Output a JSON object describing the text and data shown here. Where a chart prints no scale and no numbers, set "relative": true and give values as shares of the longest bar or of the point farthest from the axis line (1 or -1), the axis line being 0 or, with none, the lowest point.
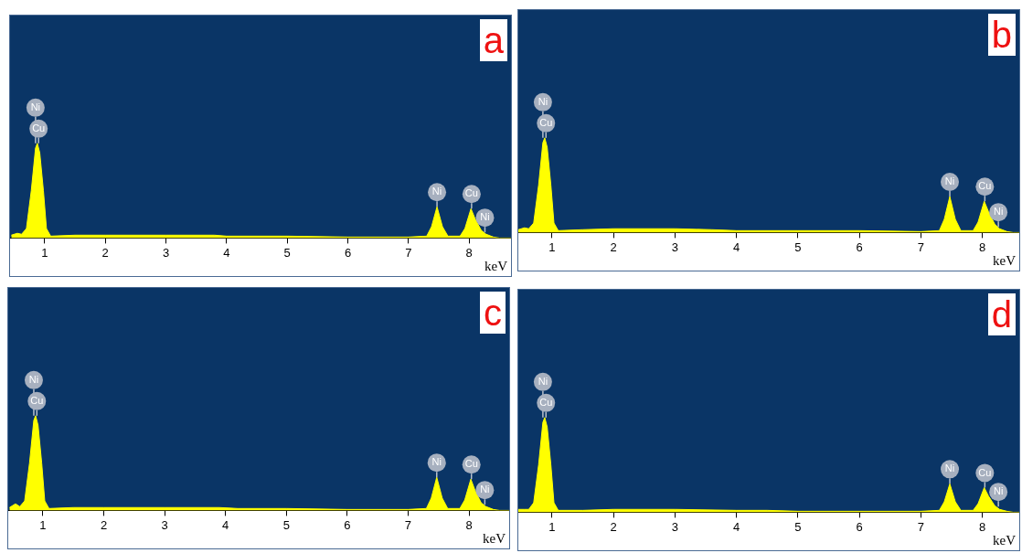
{
  "chart_data": [
    {
      "type": "area",
      "relative": true,
      "xlabel": "keV",
      "xlim": [
        0.43,
        8.69
      ],
      "xticks": [
        1,
        2,
        3,
        4,
        5,
        6,
        7,
        8
      ],
      "tick_labels": "x",
      "series": [
        {
          "color": "#ffff00",
          "x": [
            0.45,
            0.55,
            0.62,
            0.7,
            0.78,
            0.85,
            0.88,
            0.92,
            0.98,
            1.03,
            1.1,
            1.5,
            2,
            3,
            3.8,
            4,
            5,
            6,
            7,
            7.3,
            7.38,
            7.47,
            7.56,
            7.65,
            7.85,
            7.93,
            8.03,
            8.1,
            8.2,
            8.28,
            8.4,
            8.5,
            8.69
          ],
          "values": [
            0.03,
            0.05,
            0.04,
            0.1,
            0.5,
            0.95,
            1,
            0.9,
            0.5,
            0.1,
            0.02,
            0.03,
            0.03,
            0.03,
            0.03,
            0.02,
            0.02,
            0.01,
            0.01,
            0.02,
            0.12,
            0.33,
            0.12,
            0.02,
            0.02,
            0.1,
            0.31,
            0.2,
            0.08,
            0.04,
            0.01,
            0,
            0
          ]
        }
      ],
      "annotations": [
        "a",
        {
          "text": "Ni",
          "x": 0.85,
          "y": 1
        },
        {
          "text": "Cu",
          "x": 0.9,
          "y": 1
        },
        {
          "text": "Ni",
          "x": 7.47,
          "y": 0.33
        },
        {
          "text": "Cu",
          "x": 8.04,
          "y": 0.31
        },
        {
          "text": "Ni",
          "x": 8.26,
          "y": 0.06
        }
      ]
    },
    {
      "type": "area",
      "relative": true,
      "xlabel": "keV",
      "xlim": [
        0.45,
        8.6
      ],
      "xticks": [
        1,
        2,
        3,
        4,
        5,
        6,
        7,
        8
      ],
      "tick_labels": "x",
      "series": [
        {
          "color": "#ffff00",
          "x": [
            0.45,
            0.55,
            0.62,
            0.7,
            0.78,
            0.85,
            0.88,
            0.92,
            0.98,
            1.03,
            1.1,
            1.5,
            2,
            3,
            3.6,
            4,
            5,
            6,
            7,
            7.3,
            7.38,
            7.47,
            7.56,
            7.65,
            7.85,
            7.93,
            8.03,
            8.1,
            8.2,
            8.28,
            8.4,
            8.5,
            8.6
          ],
          "values": [
            0.03,
            0.05,
            0.04,
            0.1,
            0.5,
            0.95,
            1,
            0.9,
            0.5,
            0.1,
            0.02,
            0.03,
            0.04,
            0.04,
            0.03,
            0.02,
            0.02,
            0.02,
            0.01,
            0.02,
            0.14,
            0.38,
            0.14,
            0.02,
            0.02,
            0.11,
            0.33,
            0.22,
            0.09,
            0.04,
            0.01,
            0,
            0
          ]
        }
      ],
      "annotations": [
        "b",
        {
          "text": "Ni",
          "x": 0.85,
          "y": 1
        },
        {
          "text": "Cu",
          "x": 0.9,
          "y": 1
        },
        {
          "text": "Ni",
          "x": 7.47,
          "y": 0.38
        },
        {
          "text": "Cu",
          "x": 8.04,
          "y": 0.33
        },
        {
          "text": "Ni",
          "x": 8.26,
          "y": 0.06
        }
      ]
    },
    {
      "type": "area",
      "relative": true,
      "xlabel": "keV",
      "xlim": [
        0.43,
        8.66
      ],
      "xticks": [
        1,
        2,
        3,
        4,
        5,
        6,
        7,
        8
      ],
      "tick_labels": "x",
      "series": [
        {
          "color": "#ffff00",
          "x": [
            0.45,
            0.55,
            0.62,
            0.7,
            0.78,
            0.85,
            0.88,
            0.92,
            0.98,
            1.03,
            1.1,
            1.5,
            2,
            3,
            3.9,
            4.2,
            5,
            6,
            7,
            7.3,
            7.38,
            7.47,
            7.56,
            7.65,
            7.85,
            7.93,
            8.03,
            8.1,
            8.2,
            8.28,
            8.4,
            8.5,
            8.66
          ],
          "values": [
            0.03,
            0.07,
            0.04,
            0.1,
            0.5,
            0.95,
            1,
            0.9,
            0.5,
            0.1,
            0.02,
            0.03,
            0.03,
            0.03,
            0.03,
            0.02,
            0.02,
            0.01,
            0.01,
            0.02,
            0.13,
            0.35,
            0.13,
            0.02,
            0.02,
            0.11,
            0.33,
            0.21,
            0.08,
            0.04,
            0.01,
            0,
            0
          ]
        }
      ],
      "annotations": [
        "c",
        {
          "text": "Ni",
          "x": 0.85,
          "y": 1
        },
        {
          "text": "Cu",
          "x": 0.9,
          "y": 1
        },
        {
          "text": "Ni",
          "x": 7.47,
          "y": 0.35
        },
        {
          "text": "Cu",
          "x": 8.04,
          "y": 0.33
        },
        {
          "text": "Ni",
          "x": 8.26,
          "y": 0.06
        }
      ]
    },
    {
      "type": "area",
      "relative": true,
      "xlabel": "keV",
      "xlim": [
        0.45,
        8.6
      ],
      "xticks": [
        1,
        2,
        3,
        4,
        5,
        6,
        7,
        8
      ],
      "tick_labels": "x",
      "series": [
        {
          "color": "#ffff00",
          "x": [
            0.45,
            0.55,
            0.62,
            0.7,
            0.78,
            0.85,
            0.88,
            0.92,
            0.98,
            1.03,
            1.1,
            1.5,
            2,
            3,
            4,
            4.5,
            5,
            6,
            7,
            7.3,
            7.38,
            7.47,
            7.56,
            7.65,
            7.85,
            7.93,
            8.03,
            8.1,
            8.2,
            8.28,
            8.4,
            8.5,
            8.6
          ],
          "values": [
            0.03,
            0.03,
            0.03,
            0.1,
            0.5,
            0.95,
            1,
            0.9,
            0.5,
            0.1,
            0.02,
            0.02,
            0.03,
            0.03,
            0.02,
            0.02,
            0.01,
            0.01,
            0.01,
            0.02,
            0.11,
            0.3,
            0.11,
            0.02,
            0.02,
            0.09,
            0.26,
            0.17,
            0.07,
            0.03,
            0.01,
            0,
            0
          ]
        }
      ],
      "annotations": [
        "d",
        {
          "text": "Ni",
          "x": 0.85,
          "y": 1
        },
        {
          "text": "Cu",
          "x": 0.9,
          "y": 1
        },
        {
          "text": "Ni",
          "x": 7.47,
          "y": 0.3
        },
        {
          "text": "Cu",
          "x": 8.04,
          "y": 0.26
        },
        {
          "text": "Ni",
          "x": 8.26,
          "y": 0.06
        }
      ]
    }
  ]
}
